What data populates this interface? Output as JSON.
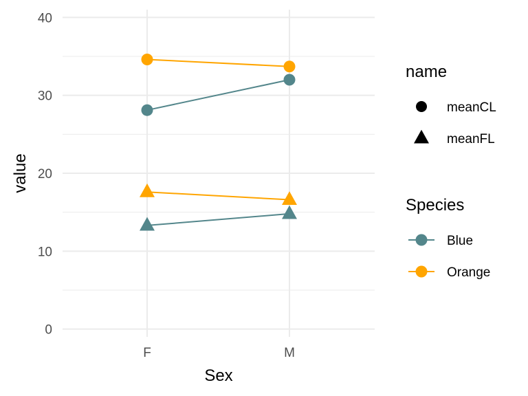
{
  "chart_data": {
    "type": "line",
    "xlabel": "Sex",
    "ylabel": "value",
    "categories": [
      "F",
      "M"
    ],
    "ylim": [
      -1,
      41
    ],
    "yticks": [
      0,
      10,
      20,
      30,
      40
    ],
    "grid": true,
    "legend_position": "right",
    "series": [
      {
        "species": "Orange",
        "name": "meanCL",
        "shape": "circle",
        "color": "#FFA500",
        "values": [
          34.6,
          33.7
        ]
      },
      {
        "species": "Blue",
        "name": "meanCL",
        "shape": "circle",
        "color": "#53868B",
        "values": [
          28.1,
          32.0
        ]
      },
      {
        "species": "Orange",
        "name": "meanFL",
        "shape": "triangle",
        "color": "#FFA500",
        "values": [
          17.6,
          16.6
        ]
      },
      {
        "species": "Blue",
        "name": "meanFL",
        "shape": "triangle",
        "color": "#53868B",
        "values": [
          13.3,
          14.8
        ]
      }
    ],
    "legends": [
      {
        "title": "name",
        "entries": [
          {
            "label": "meanCL",
            "shape": "circle",
            "color": "#000000"
          },
          {
            "label": "meanFL",
            "shape": "triangle",
            "color": "#000000"
          }
        ]
      },
      {
        "title": "Species",
        "entries": [
          {
            "label": "Blue",
            "shape": "circle-line",
            "color": "#53868B"
          },
          {
            "label": "Orange",
            "shape": "circle-line",
            "color": "#FFA500"
          }
        ]
      }
    ]
  }
}
